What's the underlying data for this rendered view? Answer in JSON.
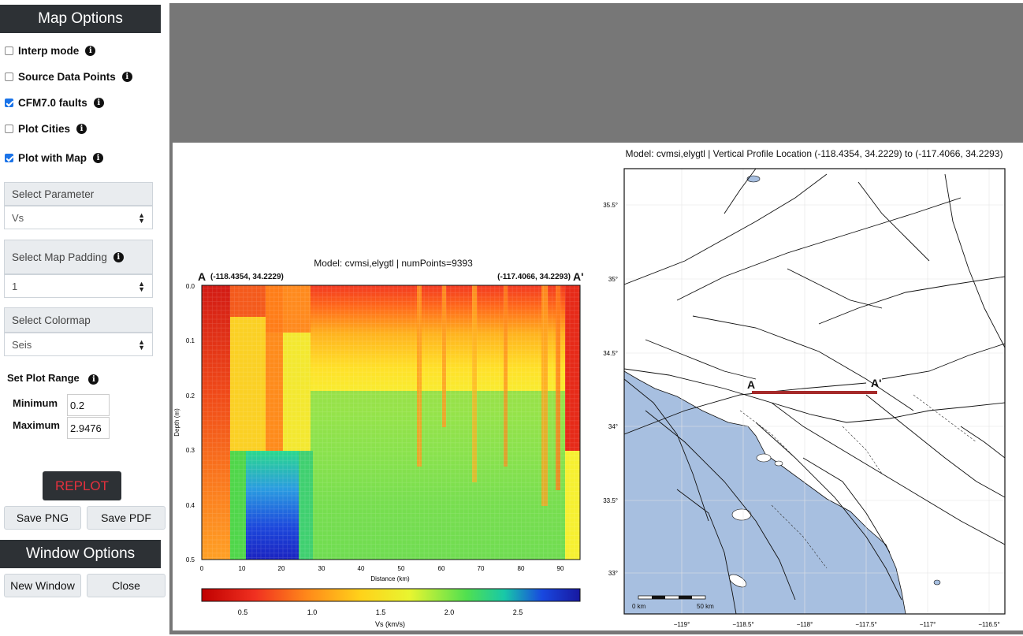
{
  "sidebar": {
    "map_options_title": "Map Options",
    "checkboxes": [
      {
        "label": "Interp mode",
        "checked": false
      },
      {
        "label": "Source Data Points",
        "checked": false
      },
      {
        "label": "CFM7.0 faults",
        "checked": true
      },
      {
        "label": "Plot Cities",
        "checked": false
      },
      {
        "label": "Plot with Map",
        "checked": true
      }
    ],
    "info_glyph": "i",
    "select_parameter_label": "Select Parameter",
    "select_parameter_value": "Vs",
    "select_padding_label": "Select Map Padding",
    "select_padding_value": "1",
    "select_colormap_label": "Select Colormap",
    "select_colormap_value": "Seis",
    "plot_range_label": "Set Plot Range",
    "minimum_label": "Minimum",
    "minimum_value": "0.2",
    "maximum_label": "Maximum",
    "maximum_value": "2.9476",
    "replot_label": "REPLOT",
    "save_png_label": "Save PNG",
    "save_pdf_label": "Save PDF",
    "window_options_title": "Window Options",
    "new_window_label": "New Window",
    "close_label": "Close"
  },
  "profile_plot": {
    "title": "Model: cvmsi,elygtl | numPoints=9393",
    "point_a": "A",
    "point_a_coords": "(-118.4354, 34.2229)",
    "point_b": "A'",
    "point_b_coords": "(-117.4066, 34.2293)",
    "ylabel": "Depth (m)",
    "xlabel": "Distance (km)",
    "x_ticks": [
      "0",
      "10",
      "20",
      "30",
      "40",
      "50",
      "60",
      "70",
      "80",
      "90"
    ],
    "y_ticks": [
      "0.0",
      "0.1",
      "0.2",
      "0.3",
      "0.4",
      "0.5"
    ],
    "colorbar_label": "Vs (km/s)",
    "colorbar_ticks": [
      "0.5",
      "1.0",
      "1.5",
      "2.0",
      "2.5"
    ]
  },
  "map_plot": {
    "title": "Model: cvmsi,elygtl | Vertical Profile Location (-118.4354, 34.2229) to (-117.4066, 34.2293)",
    "lat_ticks": [
      "35.5°",
      "35°",
      "34.5°",
      "34°",
      "33.5°",
      "33°"
    ],
    "lon_ticks": [
      "−119°",
      "−118.5°",
      "−118°",
      "−117.5°",
      "−117°",
      "−116.5°"
    ],
    "scale_start": "0 km",
    "scale_end": "50 km",
    "label_a": "A",
    "label_b": "A'",
    "profile_color": "#a52a2a",
    "ocean_color": "#a7bfe0"
  },
  "colors": {
    "header_bg": "#2d3135",
    "frame_bg": "#777777",
    "replot_text": "#e4303d",
    "checkbox_blue": "#1a73e8"
  }
}
